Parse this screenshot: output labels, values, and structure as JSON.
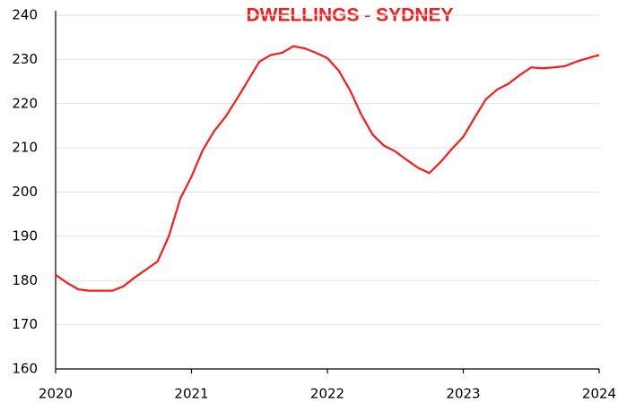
{
  "chart_data": {
    "type": "line",
    "title": "DWELLINGS - SYDNEY",
    "x": [
      2020.0,
      2020.083,
      2020.167,
      2020.25,
      2020.333,
      2020.417,
      2020.5,
      2020.583,
      2020.667,
      2020.75,
      2020.833,
      2020.917,
      2021.0,
      2021.083,
      2021.167,
      2021.25,
      2021.333,
      2021.417,
      2021.5,
      2021.583,
      2021.667,
      2021.75,
      2021.833,
      2021.917,
      2022.0,
      2022.083,
      2022.167,
      2022.25,
      2022.333,
      2022.417,
      2022.5,
      2022.583,
      2022.667,
      2022.75,
      2022.833,
      2022.917,
      2023.0,
      2023.083,
      2023.167,
      2023.25,
      2023.333,
      2023.417,
      2023.5,
      2023.583,
      2023.667,
      2023.75,
      2023.833,
      2023.917,
      2024.0
    ],
    "series": [
      {
        "name": "Dwellings",
        "color": "#ff1a1a",
        "values": [
          181.3,
          179.5,
          178.0,
          177.7,
          177.7,
          177.7,
          178.7,
          180.7,
          182.5,
          184.3,
          190.0,
          198.5,
          203.5,
          209.5,
          213.8,
          217.0,
          221.0,
          225.3,
          229.5,
          231.0,
          231.5,
          233.0,
          232.5,
          231.5,
          230.3,
          227.5,
          223.0,
          217.5,
          213.0,
          210.5,
          209.2,
          207.3,
          205.5,
          204.3,
          206.8,
          209.8,
          212.5,
          216.8,
          221.0,
          223.2,
          224.5,
          226.5,
          228.2,
          228.0,
          228.2,
          228.5,
          229.5,
          230.3,
          231.0
        ]
      }
    ],
    "xlim": [
      2020,
      2024
    ],
    "xticks": [
      2020,
      2021,
      2022,
      2023,
      2024
    ],
    "ylim": [
      160,
      240
    ],
    "yticks": [
      160,
      170,
      180,
      190,
      200,
      210,
      220,
      230,
      240
    ],
    "grid": true
  }
}
